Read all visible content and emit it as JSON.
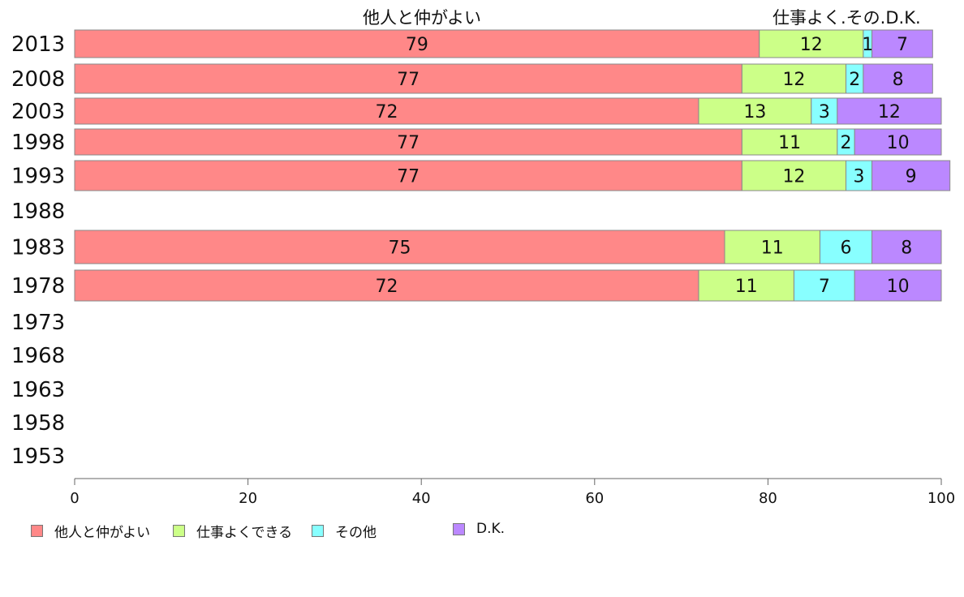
{
  "header": {
    "left_label": "他人と仲がよい",
    "right_label": "仕事よく.その.D.K."
  },
  "legend": [
    {
      "label": "他人と仲がよい",
      "color": "#ff8888"
    },
    {
      "label": "仕事よくできる",
      "color": "#ccff88"
    },
    {
      "label": "その他",
      "color": "#88ffff"
    },
    {
      "label": "D.K.",
      "color": "#bb88ff"
    }
  ],
  "chart_data": {
    "type": "bar",
    "orientation": "horizontal",
    "stacked": true,
    "categories": [
      "2013",
      "2008",
      "2003",
      "1998",
      "1993",
      "1988",
      "1983",
      "1978",
      "1973",
      "1968",
      "1963",
      "1958",
      "1953"
    ],
    "series": [
      {
        "name": "他人と仲がよい",
        "color": "#ff8888",
        "values": [
          79,
          77,
          72,
          77,
          77,
          null,
          75,
          72,
          null,
          null,
          null,
          null,
          null
        ]
      },
      {
        "name": "仕事よくできる",
        "color": "#ccff88",
        "values": [
          12,
          12,
          13,
          11,
          12,
          null,
          11,
          11,
          null,
          null,
          null,
          null,
          null
        ]
      },
      {
        "name": "その他",
        "color": "#88ffff",
        "values": [
          1,
          2,
          3,
          2,
          3,
          null,
          6,
          7,
          null,
          null,
          null,
          null,
          null
        ]
      },
      {
        "name": "D.K.",
        "color": "#bb88ff",
        "values": [
          7,
          8,
          12,
          10,
          9,
          null,
          8,
          10,
          null,
          null,
          null,
          null,
          null
        ]
      }
    ],
    "xlim": [
      0,
      100
    ],
    "xticks": [
      0,
      20,
      40,
      60,
      80,
      100
    ],
    "grid": false,
    "legend_position": "bottom-left"
  }
}
